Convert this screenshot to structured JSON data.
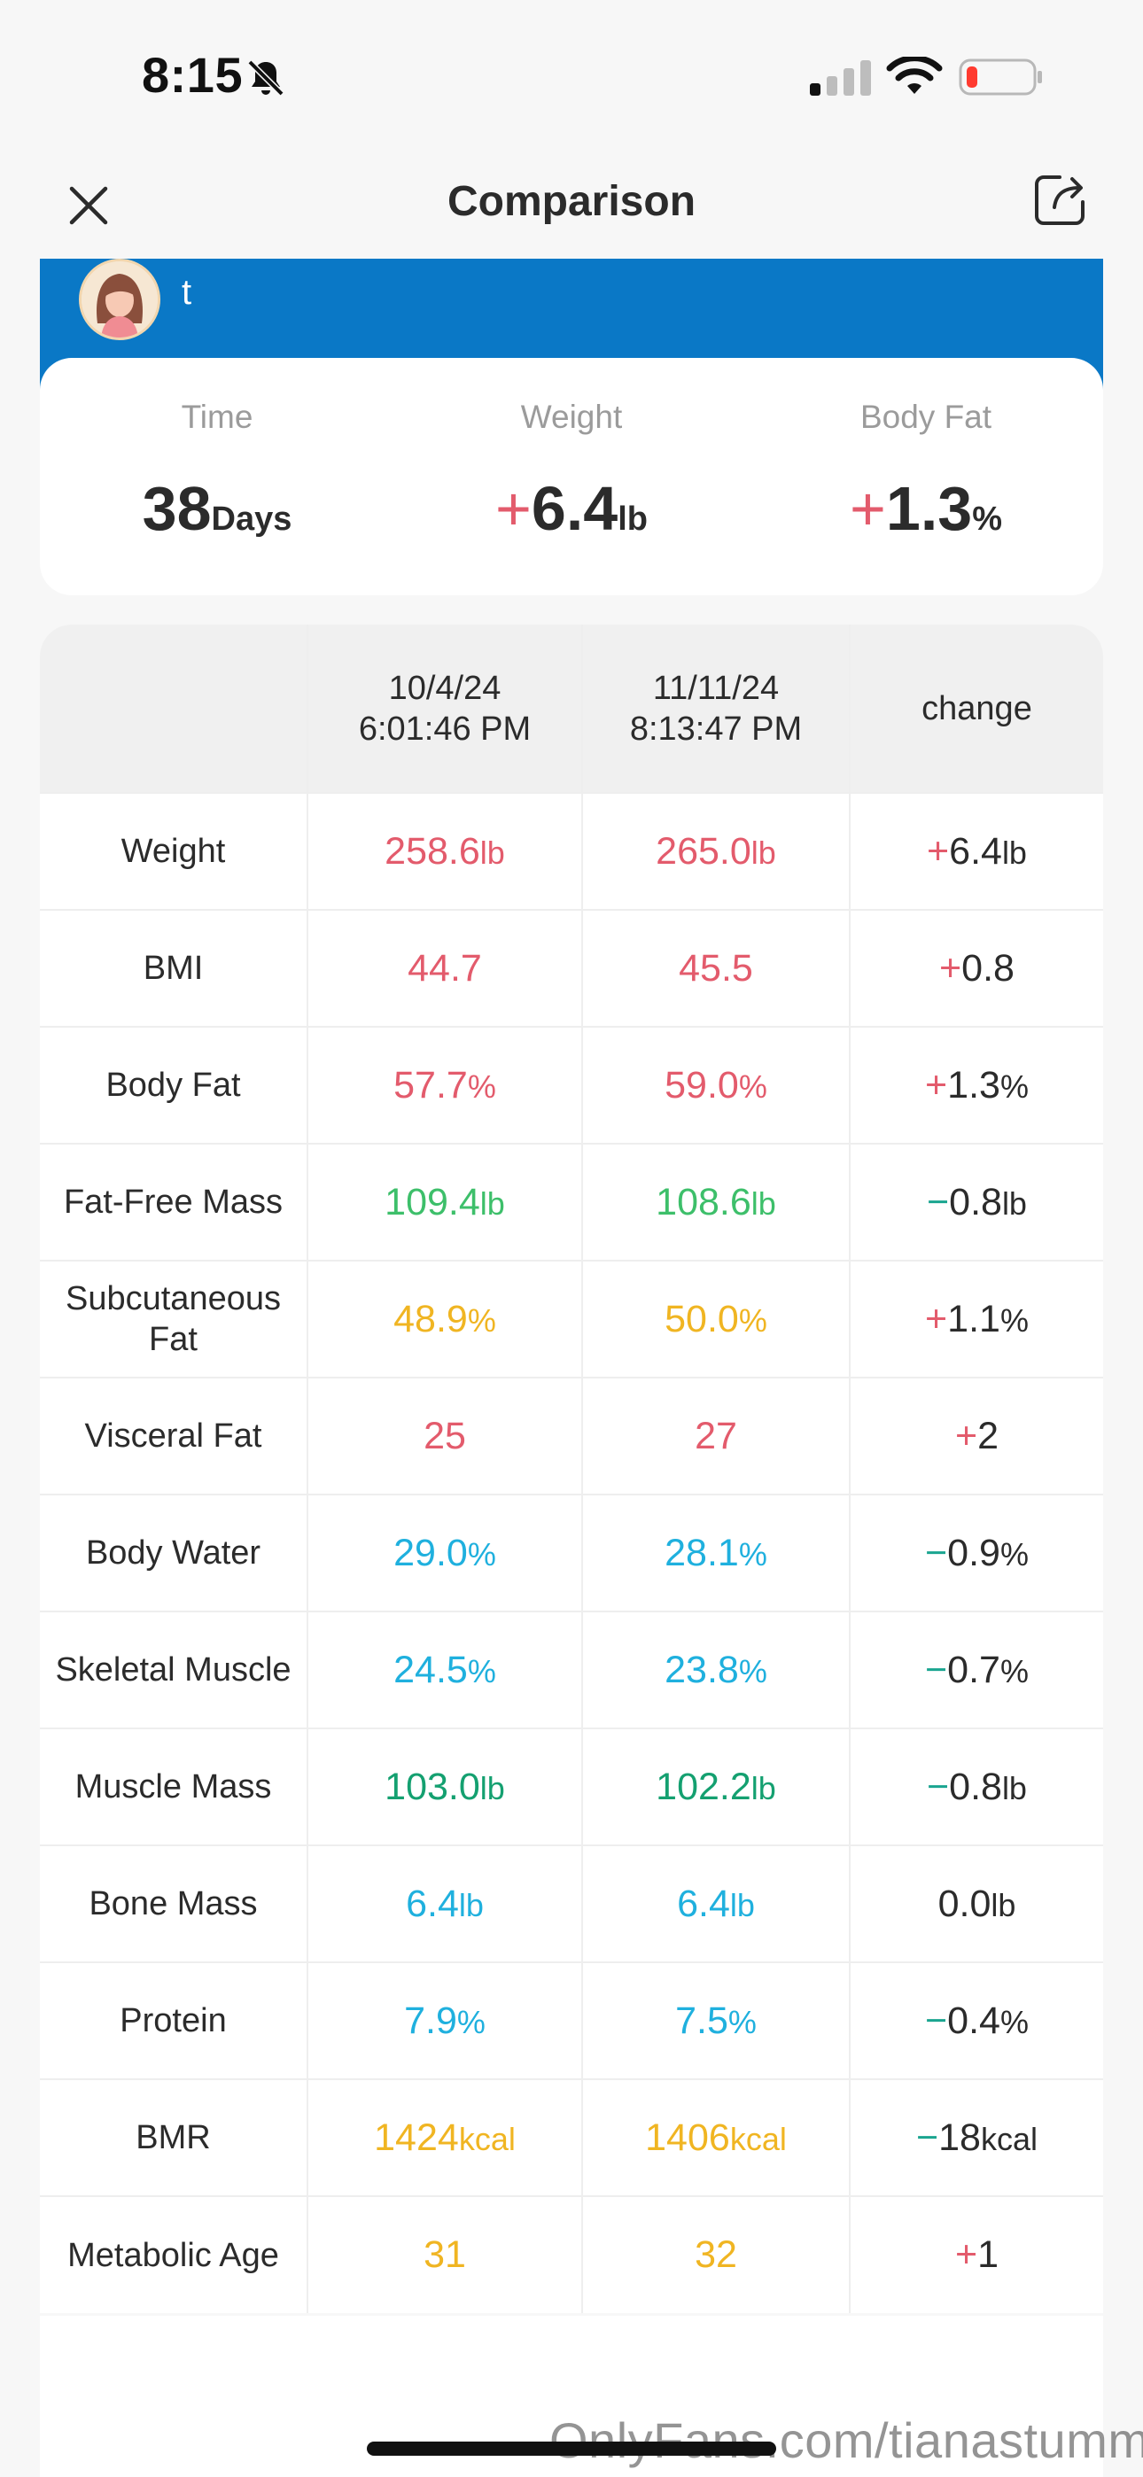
{
  "status": {
    "time": "8:15"
  },
  "header": {
    "title": "Comparison"
  },
  "user": {
    "name": "t"
  },
  "summary": [
    {
      "label": "Time",
      "sign": "",
      "value": "38",
      "unit": "Days"
    },
    {
      "label": "Weight",
      "sign": "+",
      "value": "6.4",
      "unit": "lb"
    },
    {
      "label": "Body Fat",
      "sign": "+",
      "value": "1.3",
      "unit": "%"
    }
  ],
  "table": {
    "header": {
      "date1": "10/4/24",
      "time1": "6:01:46 PM",
      "date2": "11/11/24",
      "time2": "8:13:47 PM",
      "change": "change"
    },
    "rows": [
      {
        "metric": "Weight",
        "v1": "258.6",
        "u1": "lb",
        "v2": "265.0",
        "u2": "lb",
        "color": "#e35b6c",
        "sign": "+",
        "chg": "6.4",
        "cu": "lb"
      },
      {
        "metric": "BMI",
        "v1": "44.7",
        "u1": "",
        "v2": "45.5",
        "u2": "",
        "color": "#e35b6c",
        "sign": "+",
        "chg": "0.8",
        "cu": ""
      },
      {
        "metric": "Body Fat",
        "v1": "57.7",
        "u1": "%",
        "v2": "59.0",
        "u2": "%",
        "color": "#e35b6c",
        "sign": "+",
        "chg": "1.3",
        "cu": "%"
      },
      {
        "metric": "Fat-Free Mass",
        "v1": "109.4",
        "u1": "lb",
        "v2": "108.6",
        "u2": "lb",
        "color": "#3dbf6a",
        "sign": "−",
        "chg": "0.8",
        "cu": "lb"
      },
      {
        "metric": "Subcutaneous Fat",
        "v1": "48.9",
        "u1": "%",
        "v2": "50.0",
        "u2": "%",
        "color": "#f0b522",
        "sign": "+",
        "chg": "1.1",
        "cu": "%"
      },
      {
        "metric": "Visceral Fat",
        "v1": "25",
        "u1": "",
        "v2": "27",
        "u2": "",
        "color": "#e35b6c",
        "sign": "+",
        "chg": "2",
        "cu": ""
      },
      {
        "metric": "Body Water",
        "v1": "29.0",
        "u1": "%",
        "v2": "28.1",
        "u2": "%",
        "color": "#1fb0de",
        "sign": "−",
        "chg": "0.9",
        "cu": "%"
      },
      {
        "metric": "Skeletal Muscle",
        "v1": "24.5",
        "u1": "%",
        "v2": "23.8",
        "u2": "%",
        "color": "#1fb0de",
        "sign": "−",
        "chg": "0.7",
        "cu": "%"
      },
      {
        "metric": "Muscle Mass",
        "v1": "103.0",
        "u1": "lb",
        "v2": "102.2",
        "u2": "lb",
        "color": "#14a070",
        "sign": "−",
        "chg": "0.8",
        "cu": "lb"
      },
      {
        "metric": "Bone Mass",
        "v1": "6.4",
        "u1": "lb",
        "v2": "6.4",
        "u2": "lb",
        "color": "#1fb0de",
        "sign": "",
        "chg": "0.0",
        "cu": "lb"
      },
      {
        "metric": "Protein",
        "v1": "7.9",
        "u1": "%",
        "v2": "7.5",
        "u2": "%",
        "color": "#1fb0de",
        "sign": "−",
        "chg": "0.4",
        "cu": "%"
      },
      {
        "metric": "BMR",
        "v1": "1424",
        "u1": "kcal",
        "v2": "1406",
        "u2": "kcal",
        "color": "#f0b522",
        "sign": "−",
        "chg": "18",
        "cu": "kcal"
      },
      {
        "metric": "Metabolic Age",
        "v1": "31",
        "u1": "",
        "v2": "32",
        "u2": "",
        "color": "#f0b522",
        "sign": "+",
        "chg": "1",
        "cu": ""
      }
    ]
  },
  "watermark": "OnlyFans.com/tianastummy"
}
